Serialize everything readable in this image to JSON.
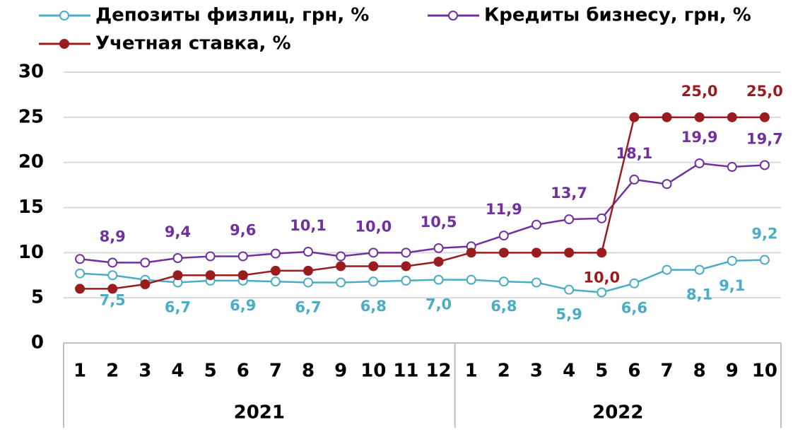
{
  "chart_data": {
    "type": "line",
    "groups": [
      {
        "name": "2021",
        "categories": [
          "1",
          "2",
          "3",
          "4",
          "5",
          "6",
          "7",
          "8",
          "9",
          "10",
          "11",
          "12"
        ]
      },
      {
        "name": "2022",
        "categories": [
          "1",
          "2",
          "3",
          "4",
          "5",
          "6",
          "7",
          "8",
          "9",
          "10"
        ]
      }
    ],
    "series": [
      {
        "name": "Депозиты физлиц, грн, %",
        "color": "#4bacc6",
        "marker": "open",
        "values": [
          7.7,
          7.5,
          7.0,
          6.7,
          6.9,
          6.9,
          6.8,
          6.7,
          6.7,
          6.8,
          6.9,
          7.0,
          7.0,
          6.8,
          6.7,
          5.9,
          5.6,
          6.6,
          8.1,
          8.1,
          9.1,
          9.2
        ],
        "value_labels": [
          null,
          "7,5",
          null,
          "6,7",
          null,
          "6,9",
          null,
          "6,7",
          null,
          "6,8",
          null,
          "7,0",
          null,
          "6,8",
          null,
          "5,9",
          null,
          "6,6",
          null,
          "8,1",
          "9,1",
          "9,2"
        ]
      },
      {
        "name": "Кредиты бизнесу, грн, %",
        "color": "#7030a0",
        "marker": "open",
        "values": [
          9.3,
          8.9,
          8.9,
          9.4,
          9.6,
          9.6,
          9.9,
          10.1,
          9.6,
          10.0,
          10.0,
          10.5,
          10.7,
          11.9,
          13.1,
          13.7,
          13.8,
          18.1,
          17.6,
          19.9,
          19.5,
          19.7
        ],
        "value_labels": [
          null,
          "8,9",
          null,
          "9,4",
          null,
          "9,6",
          null,
          "10,1",
          null,
          "10,0",
          null,
          "10,5",
          null,
          "11,9",
          null,
          "13,7",
          null,
          "18,1",
          null,
          "19,9",
          null,
          "19,7"
        ]
      },
      {
        "name": "Учетная ставка, %",
        "color": "#9b1c1f",
        "marker": "filled",
        "values": [
          6,
          6,
          6.5,
          7.5,
          7.5,
          7.5,
          8,
          8,
          8.5,
          8.5,
          8.5,
          9,
          10,
          10,
          10,
          10,
          10,
          25,
          25,
          25,
          25,
          25
        ],
        "value_labels": [
          null,
          null,
          null,
          null,
          null,
          null,
          null,
          null,
          null,
          null,
          null,
          null,
          null,
          null,
          null,
          null,
          "10,0",
          null,
          null,
          "25,0",
          null,
          "25,0"
        ]
      }
    ],
    "ylim": [
      0,
      30
    ],
    "yticks": [
      0,
      5,
      10,
      15,
      20,
      25,
      30
    ],
    "grid": true
  }
}
